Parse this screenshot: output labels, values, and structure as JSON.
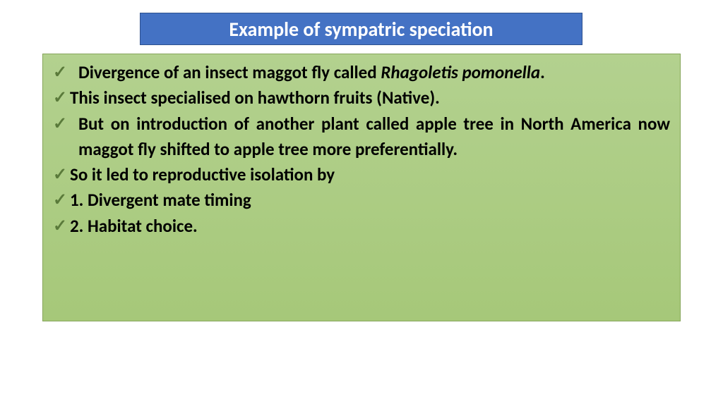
{
  "title": "Example of sympatric speciation",
  "colors": {
    "title_bg": "#4472c4",
    "title_border": "#2f528f",
    "title_text": "#ffffff",
    "content_bg_top": "#b3d18f",
    "content_bg_bottom": "#a6c879",
    "content_border": "#86a55b",
    "check_color": "#5a7a3a",
    "body_text": "#000000"
  },
  "bullets": {
    "b1_a": "Divergence of an insect maggot fly called ",
    "b1_b": "Rhagoletis pomonella",
    "b1_c": ".",
    "b2": "This insect specialised on hawthorn fruits (Native).",
    "b3": "But on introduction of another plant called apple tree in North America now maggot fly  shifted to apple tree more preferentially.",
    "b4": " So it led to reproductive isolation by",
    "b5": "1. Divergent mate timing",
    "b6": "2. Habitat choice."
  }
}
